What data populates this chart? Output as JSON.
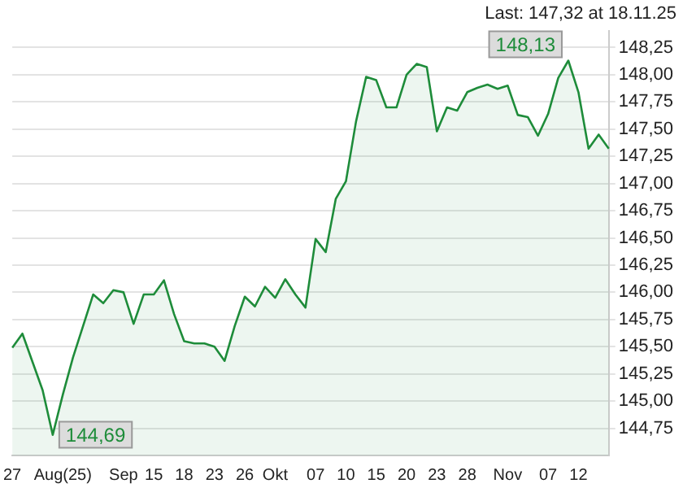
{
  "chart_data": {
    "type": "area",
    "title": "Last: 147,32 at 18.11.25",
    "categories": [
      "27",
      null,
      null,
      null,
      null,
      "Aug(25)",
      null,
      null,
      null,
      null,
      null,
      "Sep",
      null,
      null,
      "15",
      null,
      null,
      "18",
      null,
      null,
      "23",
      null,
      null,
      "26",
      null,
      null,
      "Okt",
      null,
      null,
      null,
      "07",
      null,
      null,
      "10",
      null,
      null,
      "15",
      null,
      null,
      "20",
      null,
      null,
      "23",
      null,
      null,
      "28",
      null,
      null,
      null,
      "Nov",
      null,
      null,
      null,
      "07",
      null,
      null,
      "12",
      null,
      null,
      null
    ],
    "series": [
      {
        "color": "#1e8c3a",
        "values": [
          145.49,
          145.62,
          145.36,
          145.1,
          144.69,
          145.06,
          145.4,
          145.69,
          145.98,
          145.9,
          146.02,
          146.0,
          145.71,
          145.98,
          145.98,
          146.11,
          145.8,
          145.55,
          145.53,
          145.53,
          145.5,
          145.37,
          145.69,
          145.96,
          145.87,
          146.05,
          145.95,
          146.12,
          145.98,
          145.86,
          146.49,
          146.37,
          146.86,
          147.02,
          147.57,
          147.98,
          147.95,
          147.7,
          147.7,
          148.0,
          148.1,
          148.07,
          147.48,
          147.7,
          147.67,
          147.84,
          147.88,
          147.91,
          147.87,
          147.9,
          147.63,
          147.61,
          147.44,
          147.64,
          147.97,
          148.13,
          147.84,
          147.32,
          147.45,
          147.32
        ]
      }
    ],
    "ylim": [
      144.5,
      148.4
    ],
    "yticks": [
      {
        "value": 144.75,
        "label": "144,75"
      },
      {
        "value": 145,
        "label": "145,00"
      },
      {
        "value": 145.25,
        "label": "145,25"
      },
      {
        "value": 145.5,
        "label": "145,50"
      },
      {
        "value": 145.75,
        "label": "145,75"
      },
      {
        "value": 146,
        "label": "146,00"
      },
      {
        "value": 146.25,
        "label": "146,25"
      },
      {
        "value": 146.5,
        "label": "146,50"
      },
      {
        "value": 146.75,
        "label": "146,75"
      },
      {
        "value": 147,
        "label": "147,00"
      },
      {
        "value": 147.25,
        "label": "147,25"
      },
      {
        "value": 147.5,
        "label": "147,50"
      },
      {
        "value": 147.75,
        "label": "147,75"
      },
      {
        "value": 148,
        "label": "148,00"
      },
      {
        "value": 148.25,
        "label": "148,25"
      }
    ],
    "grid": "y",
    "annotations": [
      "148,13",
      "144,69"
    ]
  }
}
